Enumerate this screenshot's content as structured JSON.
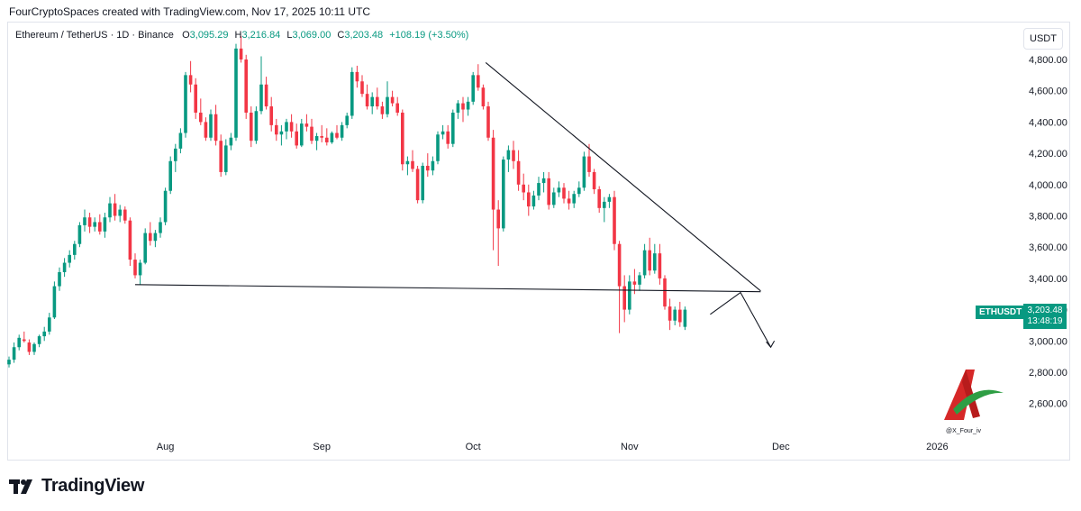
{
  "header": {
    "title": "FourCryptoSpaces created with TradingView.com, Nov 17, 2025 10:11 UTC"
  },
  "legend": {
    "symbol": "Ethereum / TetherUS · 1D · Binance",
    "open_label": "O",
    "open": "3,095.29",
    "high_label": "H",
    "high": "3,216.84",
    "low_label": "L",
    "low": "3,069.00",
    "close_label": "C",
    "close": "3,203.48",
    "change": "+108.19 (+3.50%)"
  },
  "currency": "USDT",
  "price_tag": {
    "symbol": "ETHUSDT",
    "price": "3,203.48",
    "countdown": "13:48:19"
  },
  "watermark": {
    "handle": "@X_Four_iv"
  },
  "brand": {
    "name": "TradingView"
  },
  "colors": {
    "up": "#089981",
    "down": "#f23645",
    "line": "#131722",
    "grid_text": "#131722"
  },
  "chart_data": {
    "type": "candlestick",
    "y_ticks": [
      "2,600.00",
      "2,800.00",
      "3,000.00",
      "3,200.00",
      "3,400.00",
      "3,600.00",
      "3,800.00",
      "4,000.00",
      "4,200.00",
      "4,400.00",
      "4,600.00",
      "4,800.00"
    ],
    "y_tick_values": [
      2600,
      2800,
      3000,
      3200,
      3400,
      3600,
      3800,
      4000,
      4200,
      4400,
      4600,
      4800
    ],
    "ylim": [
      2400,
      4920
    ],
    "x_ticks": [
      {
        "label": "Aug",
        "day": 31
      },
      {
        "label": "Sep",
        "day": 62
      },
      {
        "label": "Oct",
        "day": 92
      },
      {
        "label": "Nov",
        "day": 123
      },
      {
        "label": "Dec",
        "day": 153
      },
      {
        "label": "2026",
        "day": 184
      }
    ],
    "xlim": [
      0,
      190
    ],
    "candles": [
      [
        0,
        2850,
        2900,
        2830,
        2880
      ],
      [
        1,
        2880,
        2990,
        2860,
        2960
      ],
      [
        2,
        2960,
        3040,
        2940,
        3020
      ],
      [
        3,
        3010,
        3060,
        2990,
        3000
      ],
      [
        4,
        2990,
        3010,
        2910,
        2930
      ],
      [
        5,
        2930,
        2990,
        2910,
        2980
      ],
      [
        6,
        2980,
        3040,
        2960,
        3030
      ],
      [
        7,
        3030,
        3090,
        3000,
        3060
      ],
      [
        8,
        3060,
        3180,
        3040,
        3150
      ],
      [
        9,
        3150,
        3380,
        3140,
        3350
      ],
      [
        10,
        3350,
        3470,
        3320,
        3440
      ],
      [
        11,
        3440,
        3530,
        3410,
        3500
      ],
      [
        12,
        3500,
        3580,
        3470,
        3550
      ],
      [
        13,
        3550,
        3640,
        3520,
        3620
      ],
      [
        14,
        3620,
        3760,
        3600,
        3740
      ],
      [
        15,
        3740,
        3840,
        3700,
        3790
      ],
      [
        16,
        3790,
        3820,
        3690,
        3730
      ],
      [
        17,
        3730,
        3790,
        3700,
        3760
      ],
      [
        18,
        3760,
        3810,
        3680,
        3700
      ],
      [
        19,
        3700,
        3820,
        3660,
        3790
      ],
      [
        20,
        3790,
        3920,
        3760,
        3880
      ],
      [
        21,
        3880,
        3940,
        3770,
        3800
      ],
      [
        22,
        3800,
        3870,
        3760,
        3840
      ],
      [
        23,
        3840,
        3860,
        3750,
        3770
      ],
      [
        24,
        3770,
        3790,
        3480,
        3520
      ],
      [
        25,
        3520,
        3560,
        3400,
        3420
      ],
      [
        26,
        3420,
        3520,
        3360,
        3500
      ],
      [
        27,
        3500,
        3720,
        3490,
        3690
      ],
      [
        28,
        3690,
        3760,
        3610,
        3640
      ],
      [
        29,
        3640,
        3710,
        3600,
        3690
      ],
      [
        30,
        3690,
        3790,
        3660,
        3760
      ],
      [
        31,
        3760,
        3980,
        3740,
        3960
      ],
      [
        32,
        3960,
        4180,
        3940,
        4150
      ],
      [
        33,
        4150,
        4260,
        4080,
        4230
      ],
      [
        34,
        4230,
        4360,
        4200,
        4330
      ],
      [
        35,
        4330,
        4720,
        4300,
        4700
      ],
      [
        36,
        4700,
        4790,
        4590,
        4640
      ],
      [
        37,
        4640,
        4680,
        4420,
        4460
      ],
      [
        38,
        4460,
        4550,
        4380,
        4400
      ],
      [
        39,
        4400,
        4430,
        4280,
        4300
      ],
      [
        40,
        4300,
        4480,
        4280,
        4450
      ],
      [
        41,
        4450,
        4510,
        4250,
        4280
      ],
      [
        42,
        4280,
        4320,
        4050,
        4080
      ],
      [
        43,
        4080,
        4290,
        4060,
        4250
      ],
      [
        44,
        4250,
        4330,
        4220,
        4300
      ],
      [
        45,
        4300,
        4900,
        4280,
        4870
      ],
      [
        46,
        4870,
        4950,
        4780,
        4800
      ],
      [
        47,
        4800,
        4830,
        4420,
        4460
      ],
      [
        48,
        4460,
        4500,
        4240,
        4280
      ],
      [
        49,
        4280,
        4500,
        4260,
        4470
      ],
      [
        50,
        4470,
        4820,
        4450,
        4640
      ],
      [
        51,
        4640,
        4690,
        4480,
        4500
      ],
      [
        52,
        4500,
        4560,
        4340,
        4380
      ],
      [
        53,
        4380,
        4420,
        4280,
        4320
      ],
      [
        54,
        4320,
        4380,
        4250,
        4340
      ],
      [
        55,
        4340,
        4420,
        4290,
        4400
      ],
      [
        56,
        4400,
        4450,
        4300,
        4340
      ],
      [
        57,
        4340,
        4390,
        4230,
        4250
      ],
      [
        58,
        4250,
        4420,
        4240,
        4390
      ],
      [
        59,
        4390,
        4450,
        4340,
        4370
      ],
      [
        60,
        4370,
        4420,
        4260,
        4280
      ],
      [
        61,
        4280,
        4330,
        4220,
        4310
      ],
      [
        62,
        4310,
        4380,
        4270,
        4300
      ],
      [
        63,
        4300,
        4360,
        4250,
        4270
      ],
      [
        64,
        4270,
        4340,
        4260,
        4330
      ],
      [
        65,
        4330,
        4380,
        4290,
        4300
      ],
      [
        66,
        4300,
        4400,
        4280,
        4380
      ],
      [
        67,
        4380,
        4460,
        4360,
        4440
      ],
      [
        68,
        4440,
        4750,
        4420,
        4720
      ],
      [
        69,
        4720,
        4760,
        4620,
        4660
      ],
      [
        70,
        4660,
        4700,
        4560,
        4580
      ],
      [
        71,
        4580,
        4640,
        4480,
        4500
      ],
      [
        72,
        4500,
        4590,
        4450,
        4560
      ],
      [
        73,
        4560,
        4620,
        4480,
        4500
      ],
      [
        74,
        4500,
        4530,
        4420,
        4450
      ],
      [
        75,
        4450,
        4660,
        4430,
        4560
      ],
      [
        76,
        4560,
        4600,
        4500,
        4520
      ],
      [
        77,
        4520,
        4560,
        4440,
        4460
      ],
      [
        78,
        4460,
        4480,
        4090,
        4130
      ],
      [
        79,
        4130,
        4180,
        4060,
        4150
      ],
      [
        80,
        4150,
        4220,
        4080,
        4100
      ],
      [
        81,
        4100,
        4120,
        3880,
        3900
      ],
      [
        82,
        3900,
        4140,
        3880,
        4120
      ],
      [
        83,
        4120,
        4200,
        4050,
        4090
      ],
      [
        84,
        4090,
        4180,
        4060,
        4150
      ],
      [
        85,
        4150,
        4340,
        4130,
        4320
      ],
      [
        86,
        4320,
        4380,
        4290,
        4340
      ],
      [
        87,
        4340,
        4380,
        4230,
        4260
      ],
      [
        88,
        4260,
        4480,
        4240,
        4460
      ],
      [
        89,
        4460,
        4540,
        4420,
        4520
      ],
      [
        90,
        4520,
        4560,
        4400,
        4480
      ],
      [
        91,
        4480,
        4560,
        4440,
        4530
      ],
      [
        92,
        4530,
        4720,
        4510,
        4700
      ],
      [
        93,
        4700,
        4770,
        4600,
        4620
      ],
      [
        94,
        4620,
        4640,
        4480,
        4500
      ],
      [
        95,
        4500,
        4530,
        4280,
        4300
      ],
      [
        96,
        4300,
        4350,
        3580,
        3840
      ],
      [
        97,
        3840,
        3900,
        3480,
        3720
      ],
      [
        98,
        3720,
        4180,
        3700,
        4160
      ],
      [
        99,
        4160,
        4250,
        4080,
        4220
      ],
      [
        100,
        4220,
        4280,
        4100,
        4150
      ],
      [
        101,
        4150,
        4220,
        3960,
        4000
      ],
      [
        102,
        4000,
        4070,
        3900,
        3950
      ],
      [
        103,
        3950,
        4000,
        3800,
        3860
      ],
      [
        104,
        3860,
        3960,
        3840,
        3930
      ],
      [
        105,
        3930,
        4050,
        3900,
        4010
      ],
      [
        106,
        4010,
        4080,
        3950,
        4040
      ],
      [
        107,
        4040,
        4080,
        3840,
        3870
      ],
      [
        108,
        3870,
        3980,
        3850,
        3950
      ],
      [
        109,
        3950,
        4020,
        3920,
        3980
      ],
      [
        110,
        3980,
        4010,
        3880,
        3910
      ],
      [
        111,
        3910,
        3960,
        3840,
        3880
      ],
      [
        112,
        3880,
        3960,
        3850,
        3940
      ],
      [
        113,
        3940,
        4020,
        3920,
        3980
      ],
      [
        114,
        3980,
        4210,
        3960,
        4180
      ],
      [
        115,
        4180,
        4260,
        4050,
        4080
      ],
      [
        116,
        4080,
        4100,
        3940,
        3970
      ],
      [
        117,
        3970,
        3990,
        3820,
        3850
      ],
      [
        118,
        3850,
        3920,
        3760,
        3890
      ],
      [
        119,
        3890,
        3940,
        3850,
        3920
      ],
      [
        120,
        3920,
        3960,
        3580,
        3620
      ],
      [
        121,
        3620,
        3640,
        3050,
        3350
      ],
      [
        122,
        3350,
        3420,
        3120,
        3200
      ],
      [
        123,
        3200,
        3420,
        3170,
        3380
      ],
      [
        124,
        3380,
        3460,
        3300,
        3360
      ],
      [
        125,
        3360,
        3440,
        3320,
        3420
      ],
      [
        126,
        3420,
        3620,
        3400,
        3580
      ],
      [
        127,
        3580,
        3660,
        3420,
        3450
      ],
      [
        128,
        3450,
        3620,
        3430,
        3560
      ],
      [
        129,
        3560,
        3620,
        3360,
        3400
      ],
      [
        130,
        3400,
        3420,
        3200,
        3220
      ],
      [
        131,
        3220,
        3270,
        3070,
        3130
      ],
      [
        132,
        3130,
        3220,
        3100,
        3200
      ],
      [
        133,
        3200,
        3250,
        3090,
        3120
      ],
      [
        134,
        3090,
        3220,
        3070,
        3200
      ]
    ],
    "annotations": {
      "descending_trendline": [
        [
          94.5,
          4780
        ],
        [
          149,
          3320
        ]
      ],
      "support_line": [
        [
          25,
          3360
        ],
        [
          149,
          3315
        ]
      ],
      "projection": [
        [
          139,
          3170
        ],
        [
          145,
          3310
        ],
        [
          151,
          2960
        ]
      ]
    }
  }
}
